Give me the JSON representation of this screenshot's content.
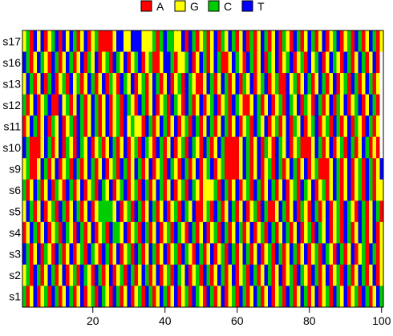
{
  "chart_data": {
    "type": "heatmap",
    "title": "",
    "xlabel": "",
    "ylabel": "",
    "x_range": [
      1,
      100
    ],
    "x_ticks": [
      20,
      40,
      60,
      80,
      100
    ],
    "x_tick_labels": [
      "20",
      "40",
      "60",
      "80",
      "100"
    ],
    "rows": [
      "s1",
      "s2",
      "s3",
      "s4",
      "s5",
      "s6",
      "s9",
      "s10",
      "s11",
      "s12",
      "s13",
      "s16",
      "s17"
    ],
    "legend": {
      "placement": "top",
      "entries": [
        {
          "label": "A",
          "color": "#ff0000"
        },
        {
          "label": "G",
          "color": "#ffff00"
        },
        {
          "label": "C",
          "color": "#00cd00"
        },
        {
          "label": "T",
          "color": "#0000ff"
        }
      ]
    },
    "sequences": {
      "s17": "GCATGTAGCTATGTCAGTAGCAAAAGTTGGTTTGGGCACTCCGGTATCAGCAGTACGTCAGTACAGTCAGTACGATCAGTCAGTAGCTAGCATCAGTCAG",
      "s16": "TCAGTCGATCAGTCAGTACGTAGCATCGTAGCTAGCAAGTTCAGGCTAGTCAGTCAAGTCGATCAGTACGTAGCTAGCATGCTAGTCGATCAGTCAGTA",
      "s13": "GTCAGTACTAGCATGCAGTCAGTACGATCGTAGCAGTCAGTAGCATCGAAGTCAGTCAGTACGTAGCTAGCAATGCAGTCAGTCAGTAGCATCAGTCAG",
      "s12": "CAGTAGCTAATGCAGTCAGTCAGTAGCATCGATCAGTAGCATCGATCAGTAGCTAGCATCGAAGTCAGTAGCATCGTACGATCAGTACGTAGCTAGTCA",
      "s11": "AGTCAGTACGTAGCATCAGTCAGTAGCATGCGGATCAGTCAGTAGCATCAGTCAGTCAGTAGCATCGTAGCAGTACGTAGCTAGCATCAGTACGATCAG",
      "s10": "TCAAAGTCAGTACGATCGTAGCAGTCAGTAGCATCGATCAGTAGCATCGATCAGTCAAAAGTCAGTACGATCGTAGCAAAGTCAGTAGCATCAGTCAGA",
      "s9": "GCAAGTCAGTAGCATCAGTCAGTAGCATCAGTCAGTAGCATCGATCAGTAGCTAGCAAAAGTCAGTAGCATCAGTCAGTAGCAAAGTCAGTAGCATCAGT",
      "s6": "CAGTCAGTACGATCAGTAGCATCGTAGCTAGCATCAGTCAGTAGCATCGAGGGCATCAGTAGCATCAGTCAGTAGCATCGTAGCAGTCAGTAGCATCAGG",
      "s5": "GTCAGTAGCATCAGTCAGTAGCCCCGTAGCATCAGTCAGTAGCATCGTAAGCATCAGTCAGTAGCATCAAGTCAGTACGATCAGTAGCATCGATCAGTCA",
      "s4": "AGTCAGTAGCATCGATCAGTAGCATCCGTAGCATCAGTAGCATCGATCAGTAGCATCAGTCAGTAGCATCAGTCAGTAGCATCGTAGCATCAGTCAGTAG",
      "s3": "TCAGTACGATCAGTAGCATCGATCAGTAGCATCAGTCAGTAGCATCGATCAGTAGCATCAGTCAGTAGCATCAGTCAGTAGCATCGATCAGTAGCATCAG",
      "s2": "GCATCAGTCAGTAGCATCGATCAGTAGCATCAGTCAGTAGCATCGTAGCATCAGTCAGTAGCATCAGTCAGTAGCATCGATCAGTAGCATCAGTCAGTAG",
      "s1": "CAGTAGCATCAGTCAGTAGCATCGATCAGTAGCATCAGTCAGTAGCATCGATCAGTAGCATCAGTCAGTAGCATCAGTCAGTAGCATCGTAGCATCAGTC"
    }
  }
}
